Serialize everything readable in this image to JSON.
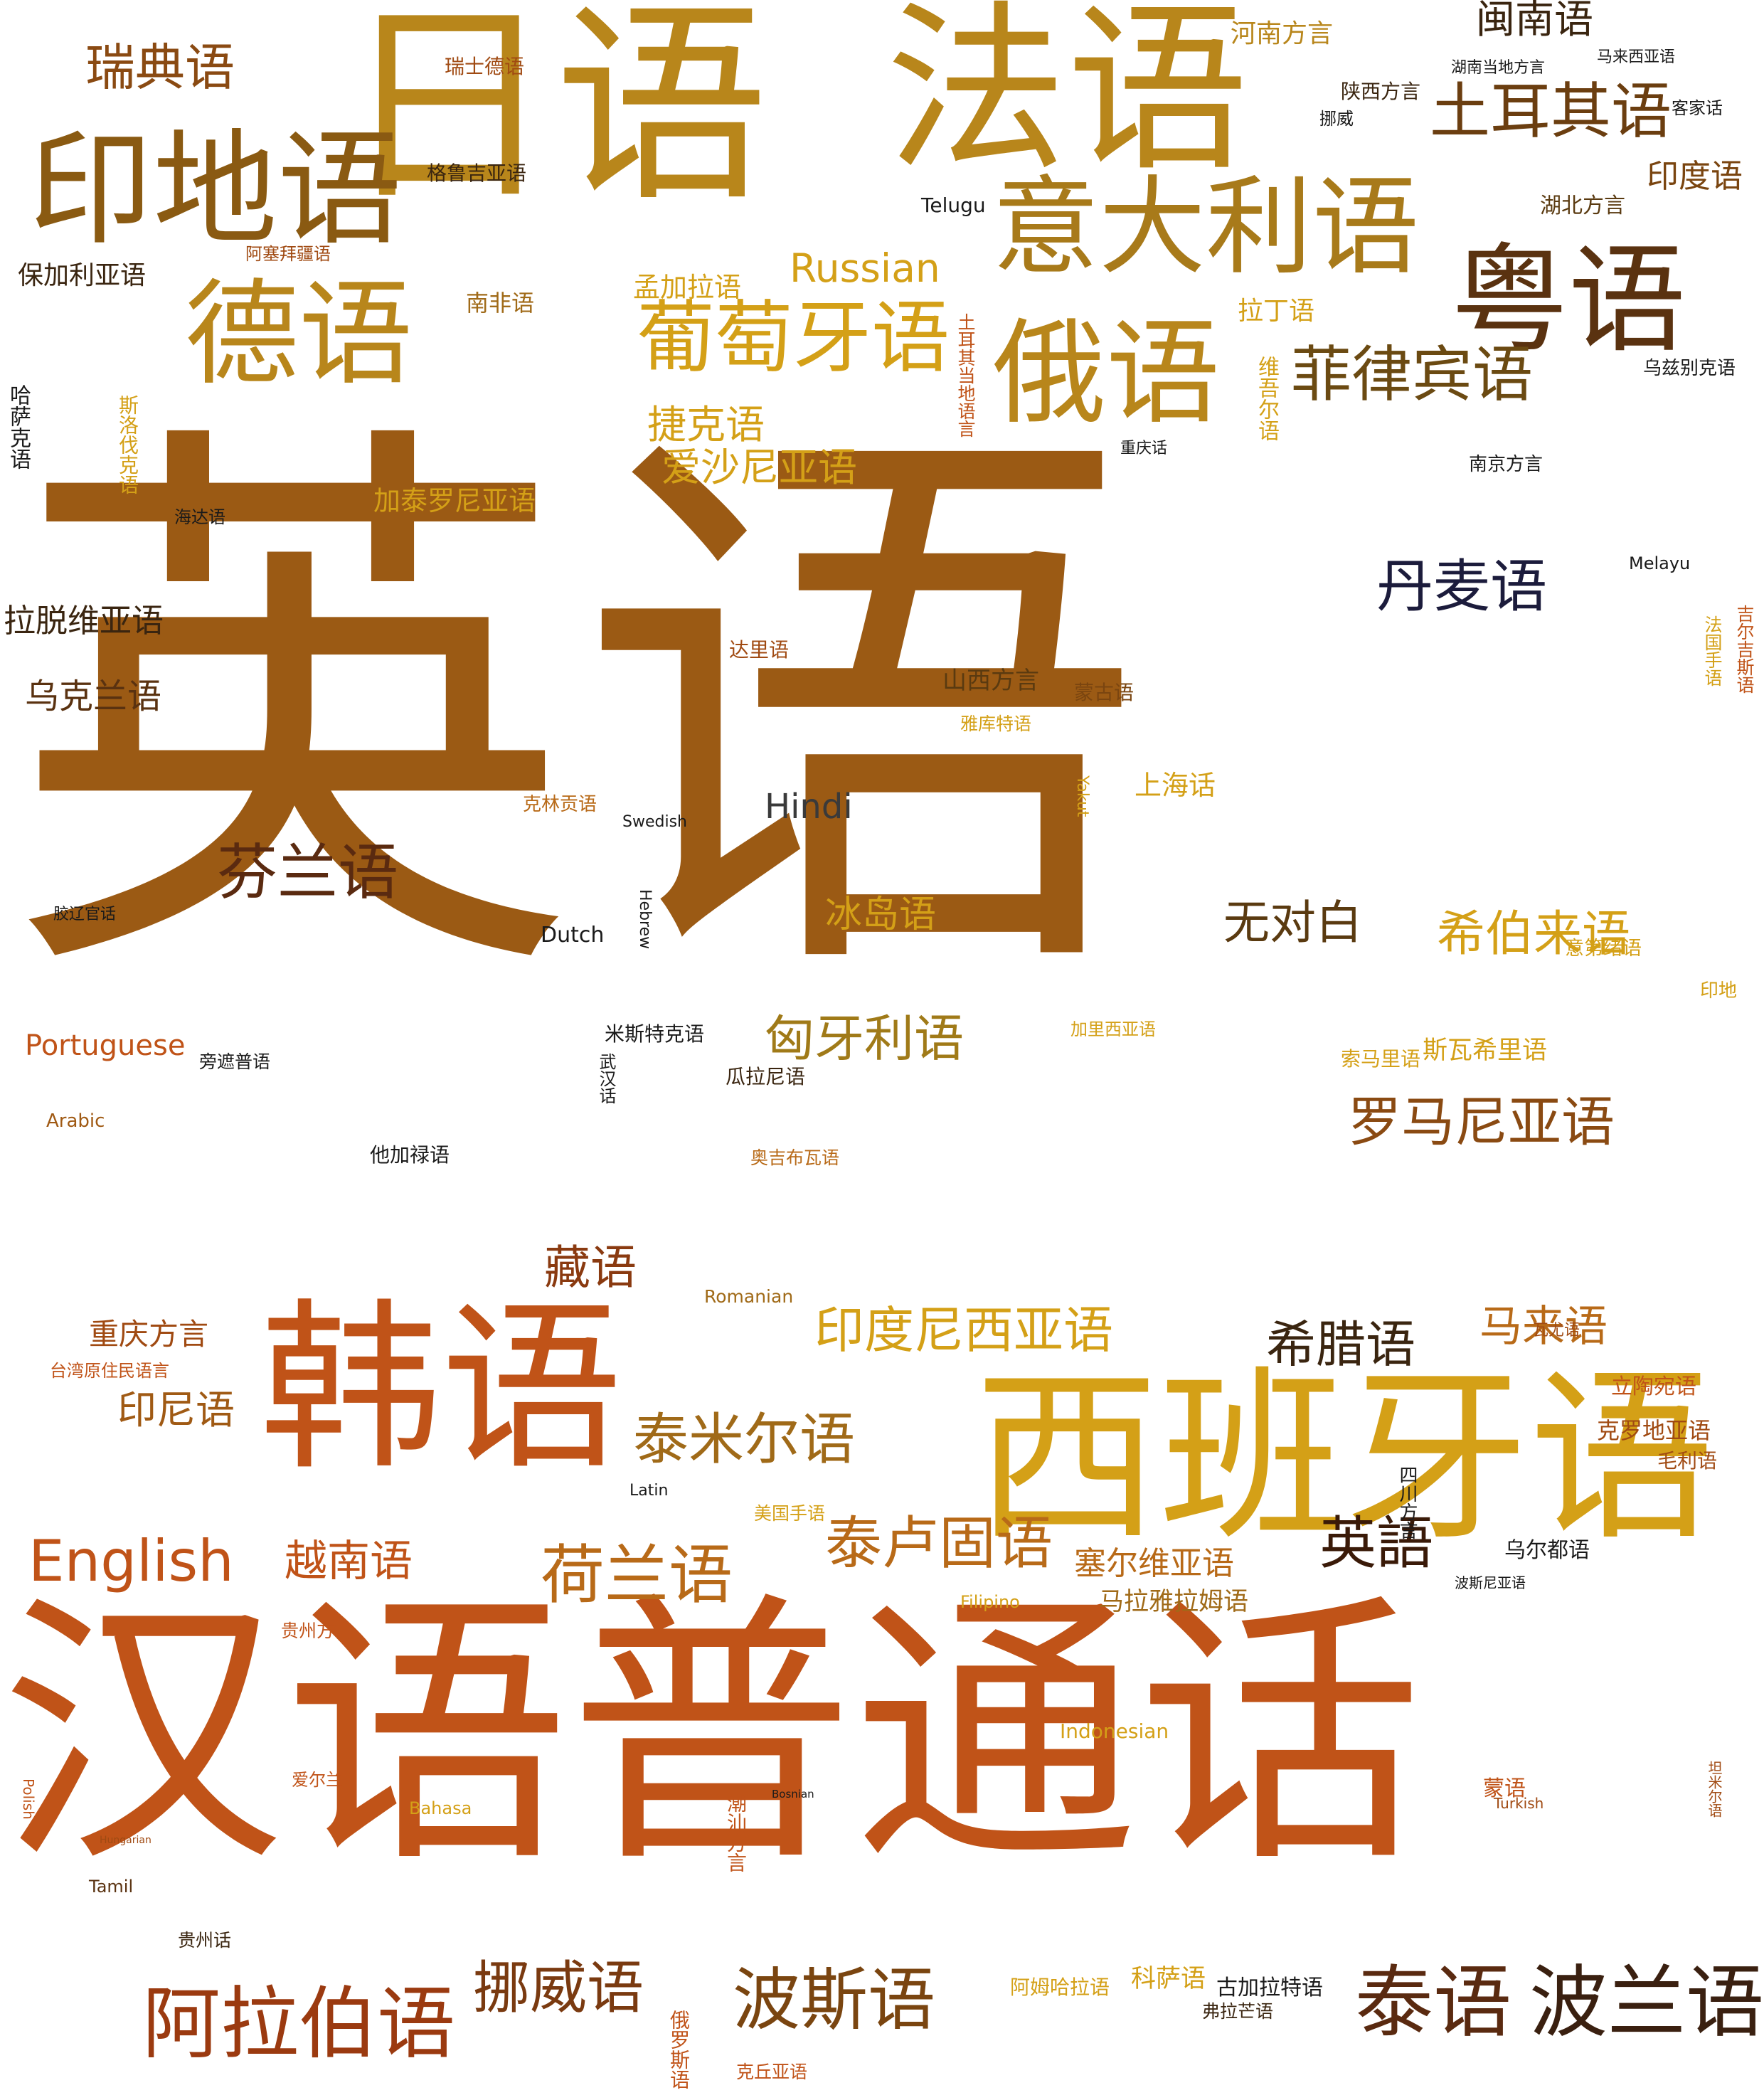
{
  "palette": {
    "gold": "#d4a017",
    "ochre": "#b8861b",
    "brown": "#9b5a14",
    "rust": "#c05318",
    "dark": "#5a3210",
    "navy": "#1c1c3c",
    "black": "#1a1a1a"
  },
  "words": [
    {
      "text": "英语",
      "color": "#9b5a14"
    },
    {
      "text": "汉语普通话",
      "color": "#c05318"
    },
    {
      "text": "日语",
      "color": "#b8861b"
    },
    {
      "text": "法语",
      "color": "#b8861b"
    },
    {
      "text": "西班牙语",
      "color": "#d4a017"
    },
    {
      "text": "韩语",
      "color": "#c05318"
    },
    {
      "text": "印地语",
      "color": "#8a5a12"
    },
    {
      "text": "德语",
      "color": "#b8861b"
    },
    {
      "text": "意大利语",
      "color": "#a87a1a"
    },
    {
      "text": "粤语",
      "color": "#5a3210"
    },
    {
      "text": "俄语",
      "color": "#b8861b"
    },
    {
      "text": "葡萄牙语",
      "color": "#d4a017"
    },
    {
      "text": "土耳其语",
      "color": "#6b3e10"
    },
    {
      "text": "菲律宾语",
      "color": "#6b4a12"
    },
    {
      "text": "丹麦语",
      "color": "#1c1c3c"
    },
    {
      "text": "芬兰语",
      "color": "#5a2a10"
    },
    {
      "text": "阿拉伯语",
      "color": "#9b3a10"
    },
    {
      "text": "泰语",
      "color": "#5a2a10"
    },
    {
      "text": "波兰语",
      "color": "#3a2010"
    },
    {
      "text": "波斯语",
      "color": "#7a4510"
    },
    {
      "text": "挪威语",
      "color": "#7a3a10"
    },
    {
      "text": "泰卢固语",
      "color": "#b86a18"
    },
    {
      "text": "荷兰语",
      "color": "#b86a18"
    },
    {
      "text": "泰米尔语",
      "color": "#a06a18"
    },
    {
      "text": "印度尼西亚语",
      "color": "#d4a017"
    },
    {
      "text": "希腊语",
      "color": "#3a2510"
    },
    {
      "text": "英語",
      "color": "#3a1a08"
    },
    {
      "text": "罗马尼亚语",
      "color": "#8a4a12"
    },
    {
      "text": "匈牙利语",
      "color": "#a07a18"
    },
    {
      "text": "希伯来语",
      "color": "#d4a017"
    },
    {
      "text": "无对白",
      "color": "#5a3a10"
    },
    {
      "text": "English",
      "color": "#c05318"
    },
    {
      "text": "瑞典语",
      "color": "#8a4a12"
    },
    {
      "text": "越南语",
      "color": "#c05318"
    },
    {
      "text": "闽南语",
      "color": "#3a2510"
    },
    {
      "text": "印度语",
      "color": "#7a4510"
    },
    {
      "text": "Russian",
      "color": "#d4a017"
    },
    {
      "text": "捷克语",
      "color": "#d4a017"
    },
    {
      "text": "爱沙尼亚语",
      "color": "#d4a017"
    },
    {
      "text": "藏语",
      "color": "#8a3a10"
    },
    {
      "text": "马来语",
      "color": "#b86a18"
    },
    {
      "text": "Hindi",
      "color": "#3a3a3a"
    },
    {
      "text": "冰岛语",
      "color": "#d4a017"
    },
    {
      "text": "印尼语",
      "color": "#a05a14"
    },
    {
      "text": "重庆方言",
      "color": "#a04a12"
    },
    {
      "text": "塞尔维亚语",
      "color": "#b86a18"
    },
    {
      "text": "斯瓦希里语",
      "color": "#d4a017"
    },
    {
      "text": "河南方言",
      "color": "#b8861b"
    },
    {
      "text": "加泰罗尼亚语",
      "color": "#d4a017"
    },
    {
      "text": "Portuguese",
      "color": "#c05318"
    },
    {
      "text": "拉脱维亚语",
      "color": "#3a2510"
    },
    {
      "text": "乌克兰语",
      "color": "#5a3210"
    },
    {
      "text": "保加利亚语",
      "color": "#3a2510"
    },
    {
      "text": "马拉雅拉姆语",
      "color": "#a06a18"
    },
    {
      "text": "上海话",
      "color": "#d4a017"
    },
    {
      "text": "陕西方言",
      "color": "#3a2510"
    },
    {
      "text": "湖北方言",
      "color": "#5a3a10"
    },
    {
      "text": "乌尔都语",
      "color": "#1a1a1a"
    },
    {
      "text": "瑞士德语",
      "color": "#a04a12"
    },
    {
      "text": "格鲁吉亚语",
      "color": "#3a2510"
    },
    {
      "text": "阿塞拜疆语",
      "color": "#a04a12"
    },
    {
      "text": "孟加拉语",
      "color": "#d4a017"
    },
    {
      "text": "南非语",
      "color": "#a06a18"
    },
    {
      "text": "拉丁语",
      "color": "#d4a017"
    },
    {
      "text": "山西方言",
      "color": "#5a3a10"
    },
    {
      "text": "蒙古语",
      "color": "#7a4510"
    },
    {
      "text": "雅库特语",
      "color": "#d4a017"
    },
    {
      "text": "达里语",
      "color": "#a04a12"
    },
    {
      "text": "克林贡语",
      "color": "#b86a18"
    },
    {
      "text": "米斯特克语",
      "color": "#1a1a1a"
    },
    {
      "text": "瓜拉尼语",
      "color": "#3a2510"
    },
    {
      "text": "奥吉布瓦语",
      "color": "#b86a18"
    },
    {
      "text": "他加禄语",
      "color": "#1a1a1a"
    },
    {
      "text": "加里西亚语",
      "color": "#d4a017"
    },
    {
      "text": "索马里语",
      "color": "#d4a017"
    },
    {
      "text": "立陶宛语",
      "color": "#c05318"
    },
    {
      "text": "克罗地亚语",
      "color": "#a04a12"
    },
    {
      "text": "毛利语",
      "color": "#a04a12"
    },
    {
      "text": "意第绪语",
      "color": "#d4a017"
    },
    {
      "text": "印地",
      "color": "#d4a017"
    },
    {
      "text": "美国手语",
      "color": "#d4a017"
    },
    {
      "text": "台湾原住民语言",
      "color": "#c05318"
    },
    {
      "text": "贵州方言",
      "color": "#c05318"
    },
    {
      "text": "爱尔兰",
      "color": "#c05318"
    },
    {
      "text": "阿姆哈拉语",
      "color": "#d4a017"
    },
    {
      "text": "科萨语",
      "color": "#d4a017"
    },
    {
      "text": "古加拉特语",
      "color": "#1a1a1a"
    },
    {
      "text": "弗拉芒语",
      "color": "#3a2510"
    },
    {
      "text": "克丘亚语",
      "color": "#c05318"
    },
    {
      "text": "贵州话",
      "color": "#3a2510"
    },
    {
      "text": "南京方言",
      "color": "#1a1a1a"
    },
    {
      "text": "湖南当地方言",
      "color": "#1a1a1a"
    },
    {
      "text": "马来西亚语",
      "color": "#1a1a1a"
    },
    {
      "text": "客家话",
      "color": "#1a1a1a"
    },
    {
      "text": "乌兹别克语",
      "color": "#1a1a1a"
    },
    {
      "text": "挪威",
      "color": "#1a1a1a"
    },
    {
      "text": "重庆话",
      "color": "#1a1a1a"
    },
    {
      "text": "海达语",
      "color": "#1a1a1a"
    },
    {
      "text": "胶辽官话",
      "color": "#1a1a1a"
    },
    {
      "text": "旁遮普语",
      "color": "#1a1a1a"
    },
    {
      "text": "Telugu",
      "color": "#1a1a1a"
    },
    {
      "text": "Melayu",
      "color": "#1a1a1a"
    },
    {
      "text": "Swedish",
      "color": "#1a1a1a"
    },
    {
      "text": "Dutch",
      "color": "#1a1a1a"
    },
    {
      "text": "Romanian",
      "color": "#a06a18"
    },
    {
      "text": "Arabic",
      "color": "#a05a14"
    },
    {
      "text": "Latin",
      "color": "#1a1a1a"
    },
    {
      "text": "Filipino",
      "color": "#d4a017"
    },
    {
      "text": "Indonesian",
      "color": "#d4a017"
    },
    {
      "text": "Bahasa",
      "color": "#d4a017"
    },
    {
      "text": "Turkish",
      "color": "#a04a12"
    },
    {
      "text": "Bosnian",
      "color": "#1a1a1a"
    },
    {
      "text": "蒙语",
      "color": "#c05318"
    },
    {
      "text": "波斯尼亚语",
      "color": "#1a1a1a"
    },
    {
      "text": "Tamil",
      "color": "#5a3210"
    },
    {
      "text": "Hungarian",
      "color": "#a04a12"
    },
    {
      "text": "Polish",
      "color": "#c05318"
    },
    {
      "text": "Hebrew",
      "color": "#1a1a1a"
    },
    {
      "text": "Yakut",
      "color": "#d4a017"
    },
    {
      "text": "武汉话",
      "color": "#1a1a1a"
    },
    {
      "text": "哈萨克语",
      "color": "#1a1a1a"
    },
    {
      "text": "斯洛伐克语",
      "color": "#d4a017"
    },
    {
      "text": "维吾尔语",
      "color": "#d4a017"
    },
    {
      "text": "土耳其当地语言",
      "color": "#c05318"
    },
    {
      "text": "法国手语",
      "color": "#d4a017"
    },
    {
      "text": "吉尔吉斯语",
      "color": "#c05318"
    },
    {
      "text": "四川方言",
      "color": "#1a1a1a"
    },
    {
      "text": "潮汕方言",
      "color": "#c05318"
    },
    {
      "text": "俄罗斯语",
      "color": "#c05318"
    },
    {
      "text": "瓦尤语",
      "color": "#a04a12"
    },
    {
      "text": "坦米尔语",
      "color": "#a04a12"
    }
  ]
}
